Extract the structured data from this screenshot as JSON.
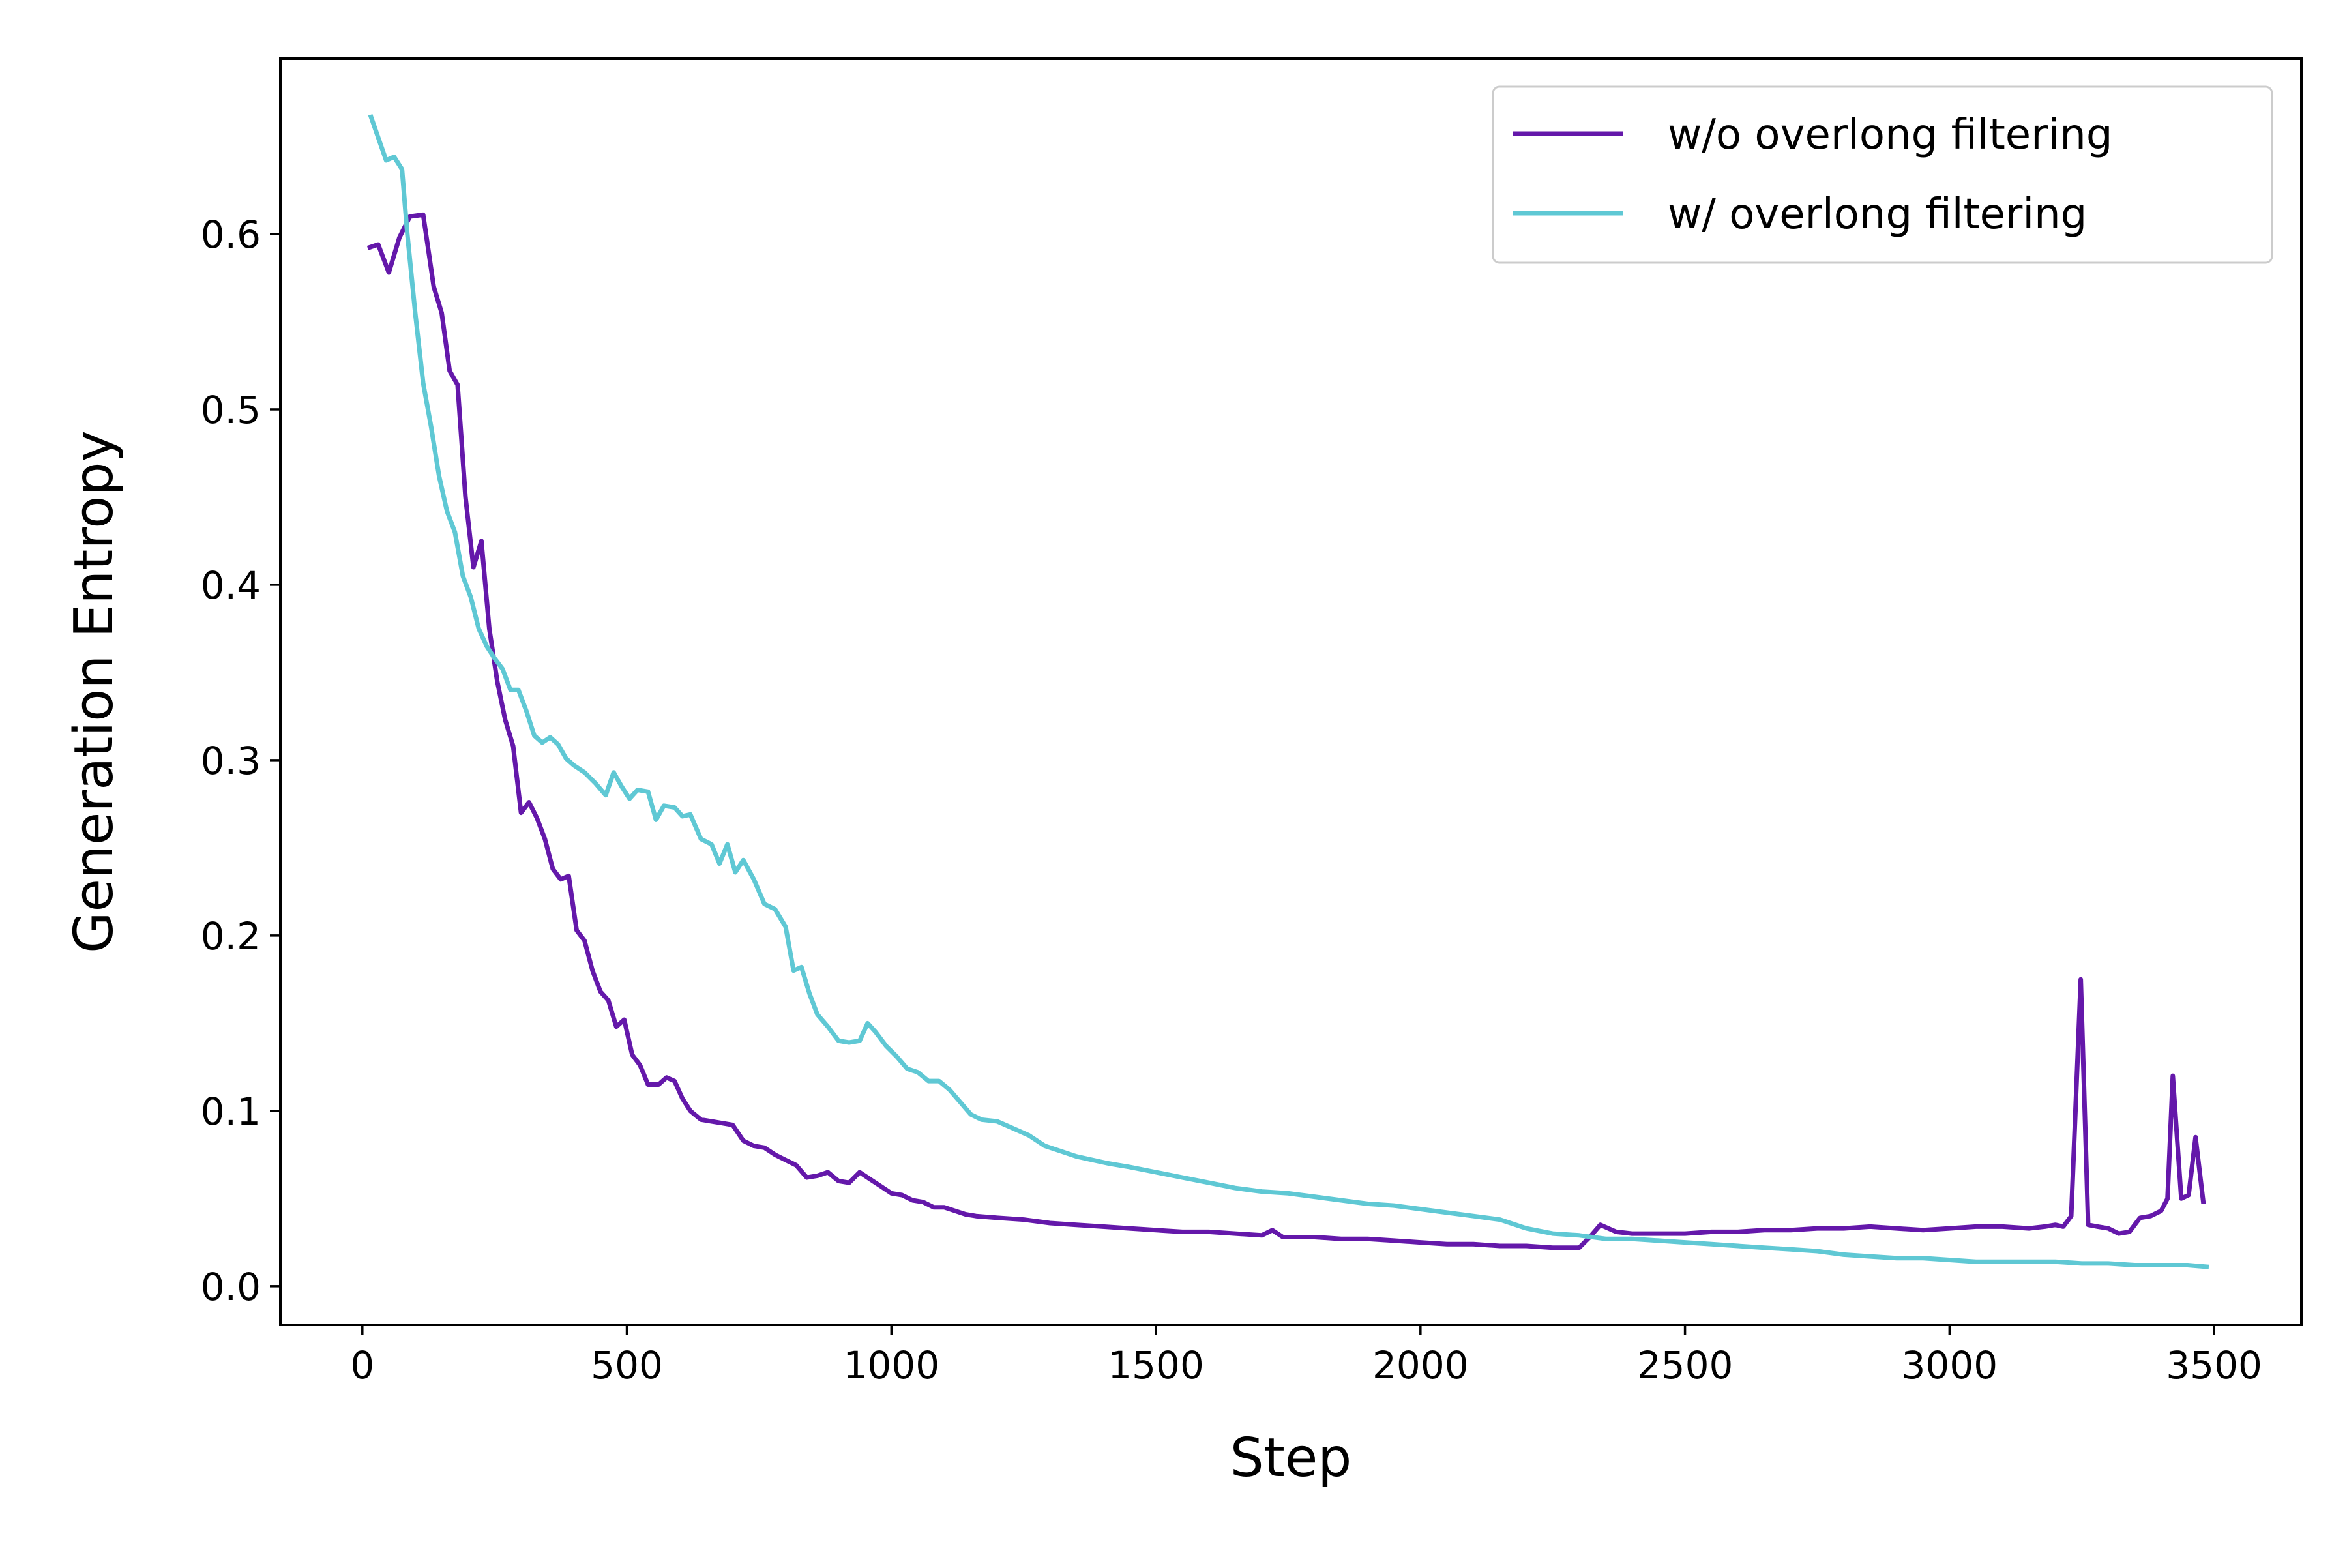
{
  "chart_data": {
    "type": "line",
    "title": "",
    "xlabel": "Step",
    "ylabel": "Generation Entropy",
    "xlim": [
      -155,
      3665
    ],
    "ylim": [
      -0.022,
      0.7
    ],
    "xticks": [
      0,
      500,
      1000,
      1500,
      2000,
      2500,
      3000,
      3500
    ],
    "xtick_labels": [
      "0",
      "500",
      "1000",
      "1500",
      "2000",
      "2500",
      "3000",
      "3500"
    ],
    "yticks": [
      0.0,
      0.1,
      0.2,
      0.3,
      0.4,
      0.5,
      0.6
    ],
    "ytick_labels": [
      "0.0",
      "0.1",
      "0.2",
      "0.3",
      "0.4",
      "0.5",
      "0.6"
    ],
    "grid": false,
    "legend_position": "top-right",
    "series": [
      {
        "name": "w/o overlong filtering",
        "color": "#6418AA",
        "points": [
          [
            10,
            0.592
          ],
          [
            30,
            0.594
          ],
          [
            50,
            0.578
          ],
          [
            70,
            0.598
          ],
          [
            90,
            0.61
          ],
          [
            115,
            0.611
          ],
          [
            135,
            0.57
          ],
          [
            150,
            0.555
          ],
          [
            165,
            0.522
          ],
          [
            180,
            0.514
          ],
          [
            195,
            0.45
          ],
          [
            210,
            0.41
          ],
          [
            225,
            0.425
          ],
          [
            240,
            0.375
          ],
          [
            255,
            0.345
          ],
          [
            270,
            0.323
          ],
          [
            285,
            0.308
          ],
          [
            300,
            0.27
          ],
          [
            315,
            0.276
          ],
          [
            330,
            0.267
          ],
          [
            345,
            0.255
          ],
          [
            360,
            0.238
          ],
          [
            375,
            0.232
          ],
          [
            390,
            0.234
          ],
          [
            405,
            0.203
          ],
          [
            420,
            0.197
          ],
          [
            435,
            0.18
          ],
          [
            450,
            0.168
          ],
          [
            465,
            0.163
          ],
          [
            480,
            0.148
          ],
          [
            495,
            0.152
          ],
          [
            510,
            0.132
          ],
          [
            525,
            0.126
          ],
          [
            540,
            0.115
          ],
          [
            560,
            0.115
          ],
          [
            575,
            0.119
          ],
          [
            590,
            0.117
          ],
          [
            605,
            0.107
          ],
          [
            620,
            0.1
          ],
          [
            640,
            0.095
          ],
          [
            660,
            0.094
          ],
          [
            680,
            0.093
          ],
          [
            700,
            0.092
          ],
          [
            720,
            0.083
          ],
          [
            740,
            0.08
          ],
          [
            760,
            0.079
          ],
          [
            780,
            0.075
          ],
          [
            800,
            0.072
          ],
          [
            820,
            0.069
          ],
          [
            840,
            0.062
          ],
          [
            860,
            0.063
          ],
          [
            880,
            0.065
          ],
          [
            900,
            0.06
          ],
          [
            920,
            0.059
          ],
          [
            940,
            0.065
          ],
          [
            960,
            0.061
          ],
          [
            980,
            0.057
          ],
          [
            1000,
            0.053
          ],
          [
            1020,
            0.052
          ],
          [
            1040,
            0.049
          ],
          [
            1060,
            0.048
          ],
          [
            1080,
            0.045
          ],
          [
            1100,
            0.045
          ],
          [
            1120,
            0.043
          ],
          [
            1140,
            0.041
          ],
          [
            1160,
            0.04
          ],
          [
            1200,
            0.039
          ],
          [
            1250,
            0.038
          ],
          [
            1300,
            0.036
          ],
          [
            1350,
            0.035
          ],
          [
            1400,
            0.034
          ],
          [
            1450,
            0.033
          ],
          [
            1500,
            0.032
          ],
          [
            1550,
            0.031
          ],
          [
            1600,
            0.031
          ],
          [
            1650,
            0.03
          ],
          [
            1700,
            0.029
          ],
          [
            1720,
            0.032
          ],
          [
            1740,
            0.028
          ],
          [
            1800,
            0.028
          ],
          [
            1850,
            0.027
          ],
          [
            1900,
            0.027
          ],
          [
            1950,
            0.026
          ],
          [
            2000,
            0.025
          ],
          [
            2050,
            0.024
          ],
          [
            2100,
            0.024
          ],
          [
            2150,
            0.023
          ],
          [
            2200,
            0.023
          ],
          [
            2250,
            0.022
          ],
          [
            2300,
            0.022
          ],
          [
            2320,
            0.028
          ],
          [
            2340,
            0.035
          ],
          [
            2370,
            0.031
          ],
          [
            2400,
            0.03
          ],
          [
            2450,
            0.03
          ],
          [
            2500,
            0.03
          ],
          [
            2550,
            0.031
          ],
          [
            2600,
            0.031
          ],
          [
            2650,
            0.032
          ],
          [
            2700,
            0.032
          ],
          [
            2750,
            0.033
          ],
          [
            2800,
            0.033
          ],
          [
            2850,
            0.034
          ],
          [
            2900,
            0.033
          ],
          [
            2950,
            0.032
          ],
          [
            3000,
            0.033
          ],
          [
            3050,
            0.034
          ],
          [
            3100,
            0.034
          ],
          [
            3150,
            0.033
          ],
          [
            3180,
            0.034
          ],
          [
            3200,
            0.035
          ],
          [
            3215,
            0.034
          ],
          [
            3230,
            0.04
          ],
          [
            3248,
            0.175
          ],
          [
            3262,
            0.035
          ],
          [
            3280,
            0.034
          ],
          [
            3300,
            0.033
          ],
          [
            3320,
            0.03
          ],
          [
            3340,
            0.031
          ],
          [
            3360,
            0.039
          ],
          [
            3380,
            0.04
          ],
          [
            3400,
            0.043
          ],
          [
            3412,
            0.05
          ],
          [
            3422,
            0.12
          ],
          [
            3438,
            0.05
          ],
          [
            3452,
            0.052
          ],
          [
            3465,
            0.085
          ],
          [
            3480,
            0.047
          ]
        ]
      },
      {
        "name": "w/ overlong filtering",
        "color": "#5FC8D4",
        "points": [
          [
            15,
            0.668
          ],
          [
            30,
            0.655
          ],
          [
            45,
            0.642
          ],
          [
            60,
            0.644
          ],
          [
            75,
            0.637
          ],
          [
            85,
            0.6
          ],
          [
            100,
            0.555
          ],
          [
            115,
            0.515
          ],
          [
            130,
            0.49
          ],
          [
            145,
            0.462
          ],
          [
            160,
            0.442
          ],
          [
            175,
            0.43
          ],
          [
            190,
            0.405
          ],
          [
            205,
            0.393
          ],
          [
            220,
            0.375
          ],
          [
            235,
            0.365
          ],
          [
            250,
            0.358
          ],
          [
            265,
            0.352
          ],
          [
            280,
            0.34
          ],
          [
            295,
            0.34
          ],
          [
            310,
            0.328
          ],
          [
            325,
            0.314
          ],
          [
            340,
            0.31
          ],
          [
            355,
            0.313
          ],
          [
            370,
            0.309
          ],
          [
            385,
            0.301
          ],
          [
            400,
            0.297
          ],
          [
            420,
            0.293
          ],
          [
            440,
            0.287
          ],
          [
            460,
            0.28
          ],
          [
            475,
            0.293
          ],
          [
            490,
            0.285
          ],
          [
            505,
            0.278
          ],
          [
            520,
            0.283
          ],
          [
            540,
            0.282
          ],
          [
            555,
            0.266
          ],
          [
            570,
            0.274
          ],
          [
            590,
            0.273
          ],
          [
            605,
            0.268
          ],
          [
            620,
            0.269
          ],
          [
            640,
            0.255
          ],
          [
            660,
            0.252
          ],
          [
            675,
            0.241
          ],
          [
            690,
            0.252
          ],
          [
            705,
            0.236
          ],
          [
            720,
            0.243
          ],
          [
            740,
            0.232
          ],
          [
            760,
            0.218
          ],
          [
            780,
            0.215
          ],
          [
            800,
            0.205
          ],
          [
            815,
            0.18
          ],
          [
            830,
            0.182
          ],
          [
            845,
            0.167
          ],
          [
            860,
            0.155
          ],
          [
            880,
            0.148
          ],
          [
            900,
            0.14
          ],
          [
            920,
            0.139
          ],
          [
            940,
            0.14
          ],
          [
            955,
            0.15
          ],
          [
            970,
            0.145
          ],
          [
            990,
            0.137
          ],
          [
            1010,
            0.131
          ],
          [
            1030,
            0.124
          ],
          [
            1050,
            0.122
          ],
          [
            1070,
            0.117
          ],
          [
            1090,
            0.117
          ],
          [
            1110,
            0.112
          ],
          [
            1130,
            0.105
          ],
          [
            1150,
            0.098
          ],
          [
            1170,
            0.095
          ],
          [
            1200,
            0.094
          ],
          [
            1230,
            0.09
          ],
          [
            1260,
            0.086
          ],
          [
            1290,
            0.08
          ],
          [
            1320,
            0.077
          ],
          [
            1350,
            0.074
          ],
          [
            1380,
            0.072
          ],
          [
            1410,
            0.07
          ],
          [
            1450,
            0.068
          ],
          [
            1500,
            0.065
          ],
          [
            1550,
            0.062
          ],
          [
            1600,
            0.059
          ],
          [
            1650,
            0.056
          ],
          [
            1700,
            0.054
          ],
          [
            1750,
            0.053
          ],
          [
            1800,
            0.051
          ],
          [
            1850,
            0.049
          ],
          [
            1900,
            0.047
          ],
          [
            1950,
            0.046
          ],
          [
            2000,
            0.044
          ],
          [
            2050,
            0.042
          ],
          [
            2100,
            0.04
          ],
          [
            2150,
            0.038
          ],
          [
            2200,
            0.033
          ],
          [
            2250,
            0.03
          ],
          [
            2300,
            0.029
          ],
          [
            2350,
            0.027
          ],
          [
            2400,
            0.027
          ],
          [
            2450,
            0.026
          ],
          [
            2500,
            0.025
          ],
          [
            2550,
            0.024
          ],
          [
            2600,
            0.023
          ],
          [
            2650,
            0.022
          ],
          [
            2700,
            0.021
          ],
          [
            2750,
            0.02
          ],
          [
            2800,
            0.018
          ],
          [
            2850,
            0.017
          ],
          [
            2900,
            0.016
          ],
          [
            2950,
            0.016
          ],
          [
            3000,
            0.015
          ],
          [
            3050,
            0.014
          ],
          [
            3100,
            0.014
          ],
          [
            3150,
            0.014
          ],
          [
            3200,
            0.014
          ],
          [
            3250,
            0.013
          ],
          [
            3300,
            0.013
          ],
          [
            3350,
            0.012
          ],
          [
            3400,
            0.012
          ],
          [
            3450,
            0.012
          ],
          [
            3490,
            0.011
          ]
        ]
      }
    ]
  }
}
